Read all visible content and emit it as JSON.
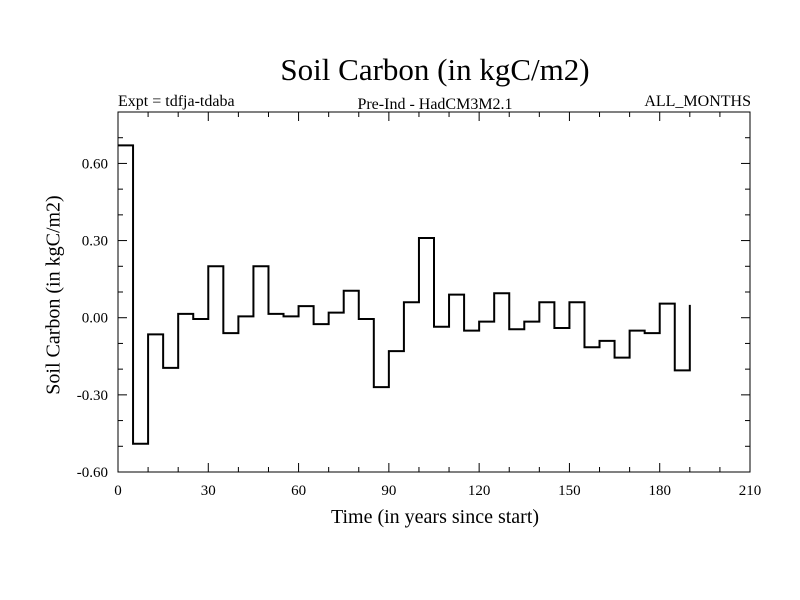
{
  "chart_data": {
    "type": "line",
    "title": "Soil Carbon (in kgC/m2)",
    "subtitle_left": "Expt = tdfja-tdaba",
    "subtitle_center": "Pre-Ind - HadCM3M2.1",
    "subtitle_right": "ALL_MONTHS",
    "xlabel": "Time (in years since start)",
    "ylabel": "Soil Carbon (in kgC/m2)",
    "xlim": [
      0,
      210
    ],
    "ylim": [
      -0.6,
      0.8
    ],
    "xticks": [
      "0",
      "30",
      "60",
      "90",
      "120",
      "150",
      "180",
      "210"
    ],
    "yticks": [
      "-0.60",
      "-0.30",
      "0.00",
      "0.30",
      "0.60"
    ],
    "line_style": "step",
    "grid": false,
    "series": [
      {
        "color": "#000000",
        "x": [
          0,
          5,
          10,
          15,
          20,
          25,
          30,
          35,
          40,
          45,
          50,
          55,
          60,
          65,
          70,
          75,
          80,
          85,
          90,
          95,
          100,
          105,
          110,
          115,
          120,
          125,
          130,
          135,
          140,
          145,
          150,
          155,
          160,
          165,
          170,
          175,
          180,
          185,
          190
        ],
        "y": [
          0.67,
          -0.49,
          -0.065,
          -0.195,
          0.015,
          -0.005,
          0.2,
          -0.06,
          0.005,
          0.2,
          0.015,
          0.005,
          0.045,
          -0.025,
          0.02,
          0.105,
          -0.005,
          -0.27,
          -0.13,
          0.06,
          0.31,
          -0.035,
          0.09,
          -0.05,
          -0.015,
          0.095,
          -0.045,
          -0.015,
          0.06,
          -0.04,
          0.06,
          -0.115,
          -0.09,
          -0.155,
          -0.05,
          -0.06,
          0.055,
          -0.205,
          0.05
        ]
      }
    ]
  }
}
